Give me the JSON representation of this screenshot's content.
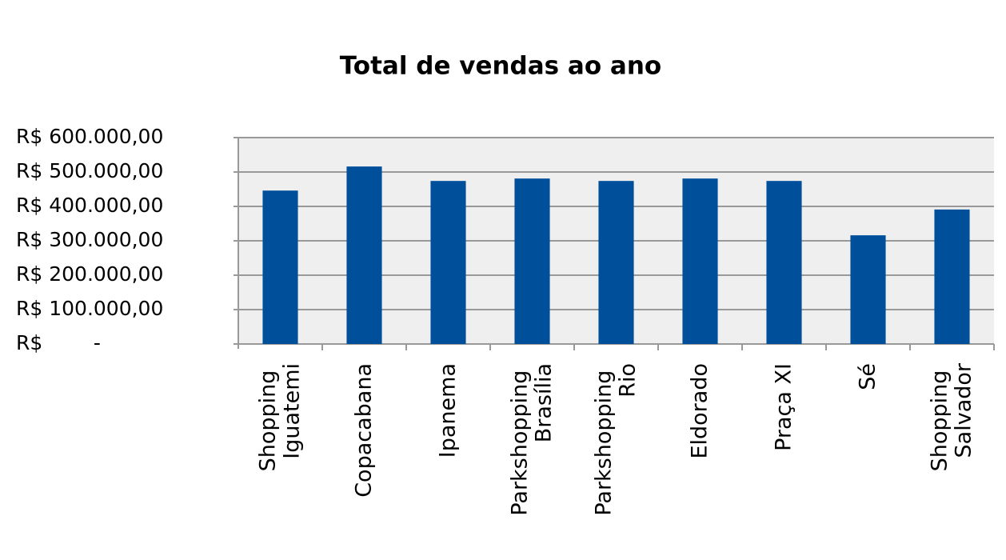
{
  "chart_data": {
    "type": "bar",
    "title": "Total de vendas ao ano",
    "categories": [
      "Shopping Iguatemi",
      "Copacabana",
      "Ipanema",
      "Parkshopping Brasília",
      "Parkshopping Rio",
      "Eldorado",
      "Praça XI",
      "Sé",
      "Shopping Salvador"
    ],
    "values": [
      446000,
      516000,
      474000,
      481000,
      474000,
      481000,
      474000,
      316000,
      391000
    ],
    "color": "#004f9b",
    "ylim": [
      0,
      600000
    ],
    "yticks": [
      {
        "value": 0,
        "label": "R$        -"
      },
      {
        "value": 100000,
        "label": "R$ 100.000,00"
      },
      {
        "value": 200000,
        "label": "R$ 200.000,00"
      },
      {
        "value": 300000,
        "label": "R$ 300.000,00"
      },
      {
        "value": 400000,
        "label": "R$ 400.000,00"
      },
      {
        "value": 500000,
        "label": "R$ 500.000,00"
      },
      {
        "value": 600000,
        "label": "R$ 600.000,00"
      }
    ],
    "grid": true
  }
}
